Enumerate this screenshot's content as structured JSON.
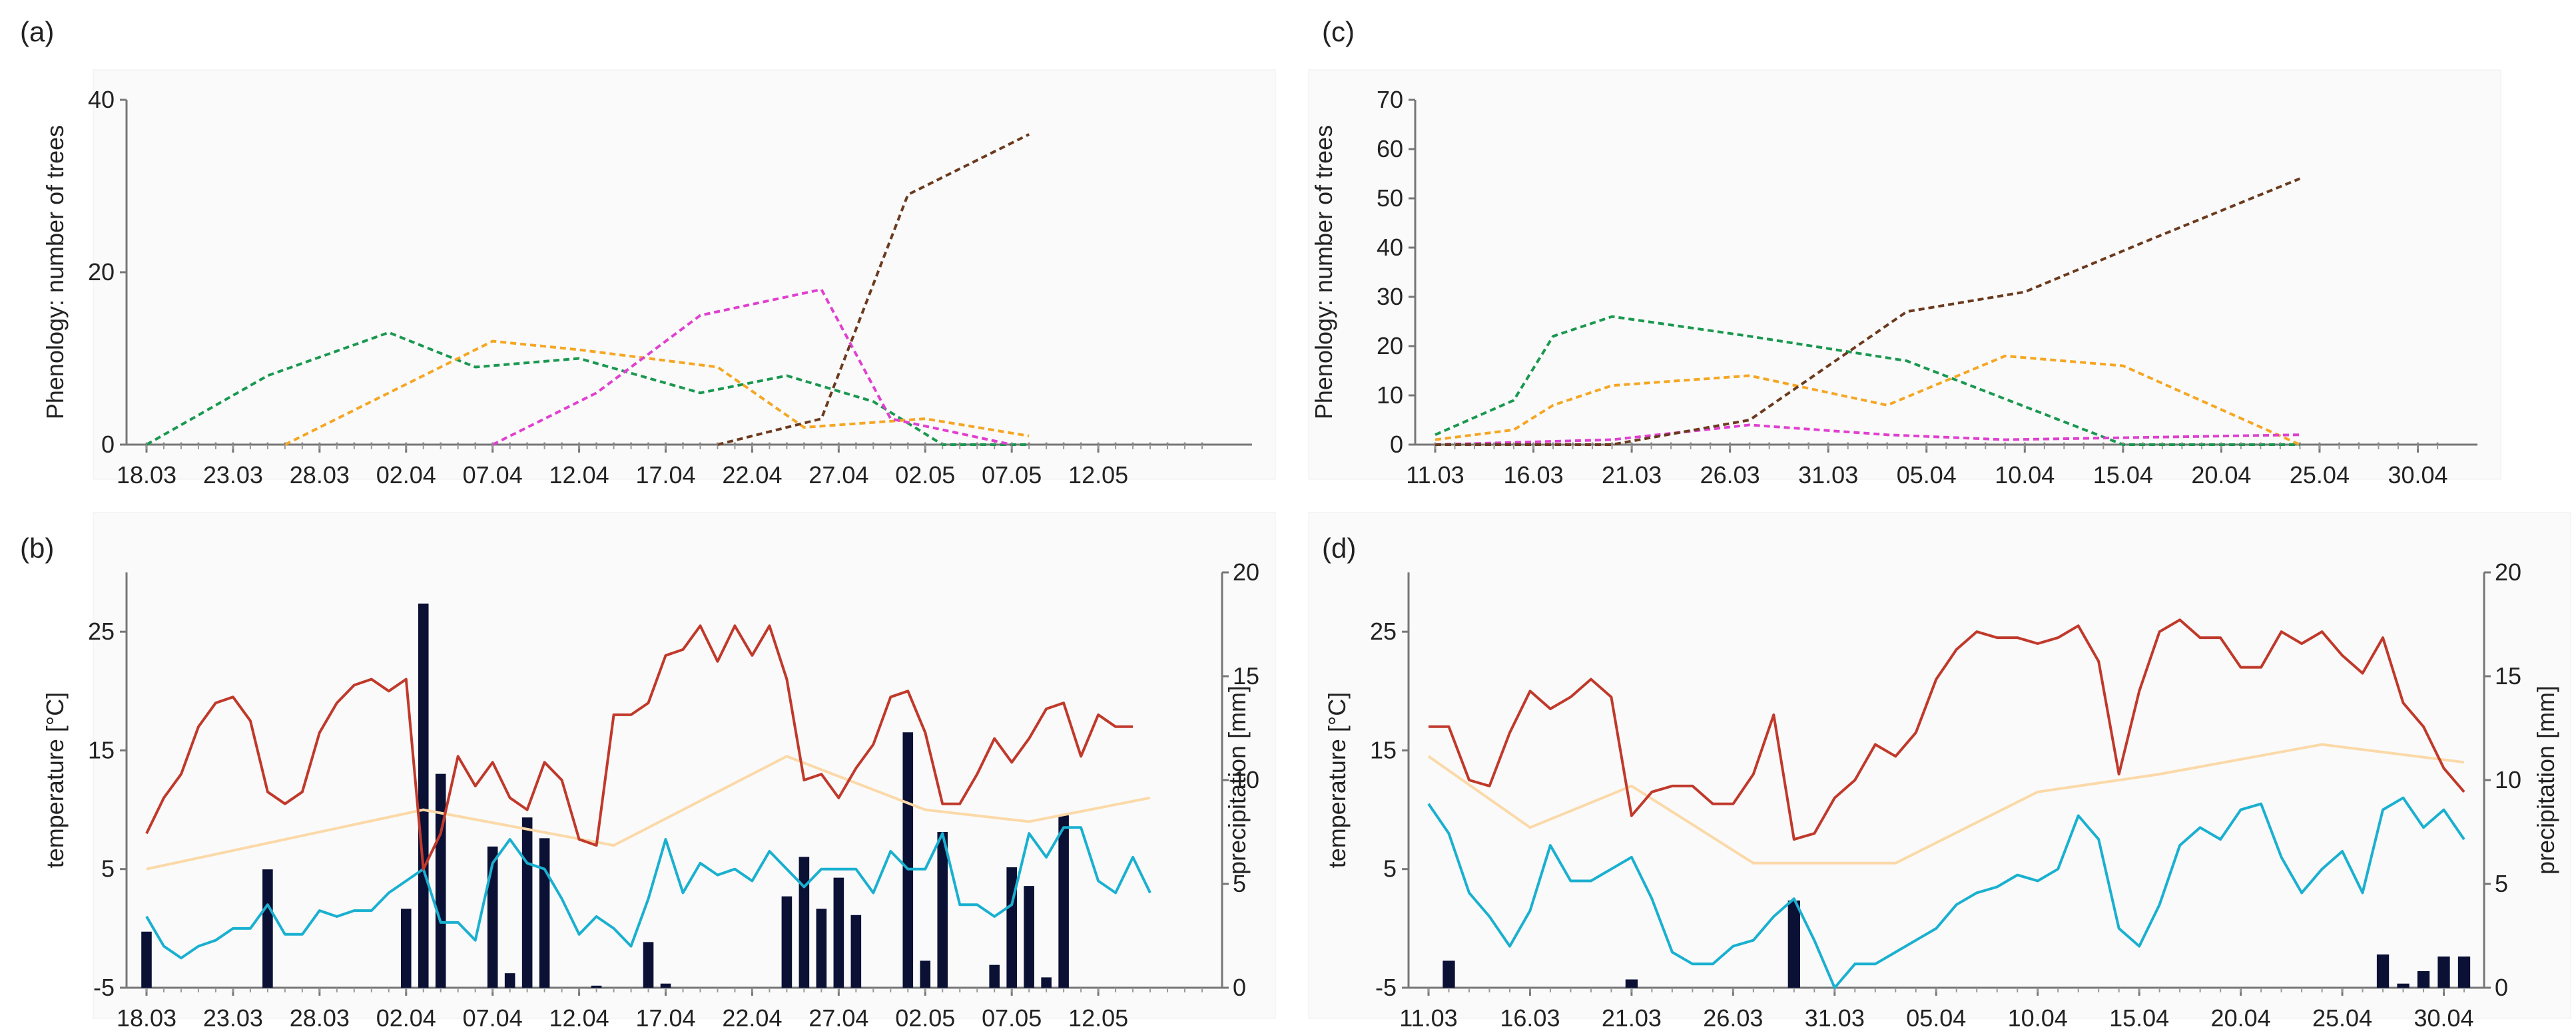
{
  "chart_data": [
    {
      "panel": "(a)",
      "type": "line",
      "ylabel": "Phenology: number of trees",
      "ylim": [
        0,
        40
      ],
      "yticks": [
        0,
        20,
        40
      ],
      "xticks": [
        "18.03",
        "23.03",
        "28.03",
        "02.04",
        "07.04",
        "12.04",
        "17.04",
        "22.04",
        "27.04",
        "02.05",
        "07.05",
        "12.05"
      ],
      "xrange_days": [
        0,
        61
      ],
      "series": [
        {
          "color": "#1a9850",
          "dash": true,
          "x": [
            0,
            7,
            14,
            19,
            25,
            32,
            37,
            42,
            46,
            51
          ],
          "y": [
            0,
            8,
            13,
            9,
            10,
            6,
            8,
            5,
            0,
            0
          ]
        },
        {
          "color": "#f5a623",
          "dash": true,
          "x": [
            8,
            20,
            25,
            33,
            38,
            45,
            51
          ],
          "y": [
            0,
            12,
            11,
            9,
            2,
            3,
            1
          ]
        },
        {
          "color": "#e040d0",
          "dash": true,
          "x": [
            20,
            26,
            32,
            39,
            43,
            50
          ],
          "y": [
            0,
            6,
            15,
            18,
            3,
            0
          ]
        },
        {
          "color": "#6b3a1e",
          "dash": true,
          "x": [
            33,
            39,
            44,
            51
          ],
          "y": [
            0,
            3,
            29,
            36
          ]
        }
      ]
    },
    {
      "panel": "(b)",
      "type": "line+bar",
      "ylabel": "temperature [°C]",
      "y2label": "precipitation [mm]",
      "ylim": [
        -5,
        30
      ],
      "yticks": [
        -5,
        5,
        15,
        25
      ],
      "y2lim": [
        0,
        20
      ],
      "y2ticks": [
        0,
        5,
        10,
        15,
        20
      ],
      "xticks": [
        "18.03",
        "23.03",
        "28.03",
        "02.04",
        "07.04",
        "12.04",
        "17.04",
        "22.04",
        "27.04",
        "02.05",
        "07.05",
        "12.05"
      ],
      "xrange_days": [
        0,
        61
      ],
      "tmax": {
        "color": "#c0392b",
        "values": [
          8,
          11,
          13,
          17,
          19,
          19.5,
          17.5,
          11.5,
          10.5,
          11.5,
          16.5,
          19,
          20.5,
          21,
          20,
          21,
          5,
          8,
          14.5,
          12,
          14,
          11,
          10,
          14,
          12.5,
          7.5,
          7,
          18,
          18,
          19,
          23,
          23.5,
          25.5,
          22.5,
          25.5,
          23,
          25.5,
          21,
          12.5,
          13,
          11,
          13.5,
          15.5,
          19.5,
          20,
          16.5,
          10.5,
          10.5,
          13,
          16,
          14,
          16,
          18.5,
          19,
          14.5,
          18,
          17,
          17
        ]
      },
      "tmin": {
        "color": "#1ab0d0",
        "values": [
          1,
          -1.5,
          -2.5,
          -1.5,
          -1,
          0,
          0,
          2,
          -0.5,
          -0.5,
          1.5,
          1,
          1.5,
          1.5,
          3,
          4,
          5,
          0.5,
          0.5,
          -1,
          5.5,
          7.5,
          5.5,
          5,
          2.5,
          -0.5,
          1,
          0,
          -1.5,
          2.5,
          7.5,
          3,
          5.5,
          4.5,
          5,
          4,
          6.5,
          5,
          3.5,
          5,
          5,
          5,
          3,
          6.5,
          5,
          5,
          8,
          2,
          2,
          1,
          2,
          8,
          6,
          8.5,
          8.5,
          4,
          3,
          6,
          3
        ]
      },
      "tmean": {
        "color": "#fbd9a8",
        "x": [
          0,
          16,
          27,
          37,
          45,
          51,
          58
        ],
        "values": [
          5,
          10,
          7,
          14.5,
          10,
          9,
          11
        ]
      },
      "precip": {
        "color": "#0b1035",
        "days": [
          0,
          7,
          15,
          16,
          17,
          20,
          21,
          22,
          23,
          26,
          29,
          30,
          37,
          38,
          39,
          40,
          41,
          44,
          45,
          46,
          49,
          50,
          51,
          52,
          53
        ],
        "mm": [
          2.7,
          5.7,
          3.8,
          18.5,
          10.3,
          6.8,
          0.7,
          8.2,
          7.2,
          0.1,
          2.2,
          0.2,
          4.4,
          6.3,
          3.8,
          5.3,
          3.5,
          12.3,
          1.3,
          7.5,
          1.1,
          5.8,
          4.9,
          0.5,
          8.3
        ]
      }
    },
    {
      "panel": "(c)",
      "type": "line",
      "ylabel": "Phenology: number of trees",
      "ylim": [
        0,
        70
      ],
      "yticks": [
        0,
        10,
        20,
        30,
        40,
        50,
        60,
        70
      ],
      "xticks": [
        "11.03",
        "16.03",
        "21.03",
        "26.03",
        "31.03",
        "05.04",
        "10.04",
        "15.04",
        "20.04",
        "25.04",
        "30.04"
      ],
      "xrange_days": [
        0,
        51
      ],
      "series": [
        {
          "color": "#1a9850",
          "dash": true,
          "x": [
            0,
            4,
            6,
            9,
            16,
            24,
            35,
            44
          ],
          "y": [
            2,
            9,
            22,
            26,
            22,
            17,
            0,
            0
          ]
        },
        {
          "color": "#f5a623",
          "dash": true,
          "x": [
            0,
            4,
            6,
            9,
            16,
            23,
            29,
            35,
            44
          ],
          "y": [
            1,
            3,
            8,
            12,
            14,
            8,
            18,
            16,
            0
          ]
        },
        {
          "color": "#e040d0",
          "dash": true,
          "x": [
            0,
            9,
            16,
            23,
            29,
            44
          ],
          "y": [
            0,
            1,
            4,
            2,
            1,
            2
          ]
        },
        {
          "color": "#6b3a1e",
          "dash": true,
          "x": [
            0,
            9,
            16,
            24,
            30,
            36,
            44
          ],
          "y": [
            0,
            0,
            5,
            27,
            31,
            41,
            54
          ]
        }
      ]
    },
    {
      "panel": "(d)",
      "type": "line+bar",
      "ylabel": "temperature [°C]",
      "y2label": "precipitation [mm]",
      "ylim": [
        -5,
        30
      ],
      "yticks": [
        -5,
        5,
        15,
        25
      ],
      "y2lim": [
        0,
        20
      ],
      "y2ticks": [
        0,
        5,
        10,
        15,
        20
      ],
      "xticks": [
        "11.03",
        "16.03",
        "21.03",
        "26.03",
        "31.03",
        "05.04",
        "10.04",
        "15.04",
        "20.04",
        "25.04",
        "30.04"
      ],
      "xrange_days": [
        0,
        51
      ],
      "tmax": {
        "color": "#c0392b",
        "values": [
          17,
          17,
          12.5,
          12,
          16.5,
          20,
          18.5,
          19.5,
          21,
          19.5,
          9.5,
          11.5,
          12,
          12,
          10.5,
          10.5,
          13,
          18,
          7.5,
          8,
          11,
          12.5,
          15.5,
          14.5,
          16.5,
          21,
          23.5,
          25,
          24.5,
          24.5,
          24,
          24.5,
          25.5,
          22.5,
          13,
          20,
          25,
          26,
          24.5,
          24.5,
          22,
          22,
          25,
          24,
          25,
          23,
          21.5,
          24.5,
          19,
          17,
          13.5,
          11.5
        ]
      },
      "tmin": {
        "color": "#1ab0d0",
        "values": [
          10.5,
          8,
          3,
          1,
          -1.5,
          1.5,
          7,
          4,
          4,
          5,
          6,
          2.5,
          -2,
          -3,
          -3,
          -1.5,
          -1,
          1,
          2.5,
          -1,
          -5,
          -3,
          -3,
          -2,
          -1,
          0,
          2,
          3,
          3.5,
          4.5,
          4,
          5,
          9.5,
          7.5,
          0,
          -1.5,
          2,
          7,
          8.5,
          7.5,
          10,
          10.5,
          6,
          3,
          5,
          6.5,
          3,
          10,
          11,
          8.5,
          10,
          7.5
        ]
      },
      "tmean": {
        "color": "#fbd9a8",
        "x": [
          0,
          5,
          10,
          16,
          23,
          30,
          36,
          44,
          51
        ],
        "values": [
          14.5,
          8.5,
          12,
          5.5,
          5.5,
          11.5,
          13,
          15.5,
          14
        ]
      },
      "precip": {
        "color": "#0b1035",
        "days": [
          1,
          10,
          18,
          47,
          48,
          49,
          50,
          51
        ],
        "mm": [
          1.3,
          0.4,
          4.2,
          1.6,
          0.2,
          0.8,
          1.5,
          1.5
        ]
      }
    }
  ]
}
